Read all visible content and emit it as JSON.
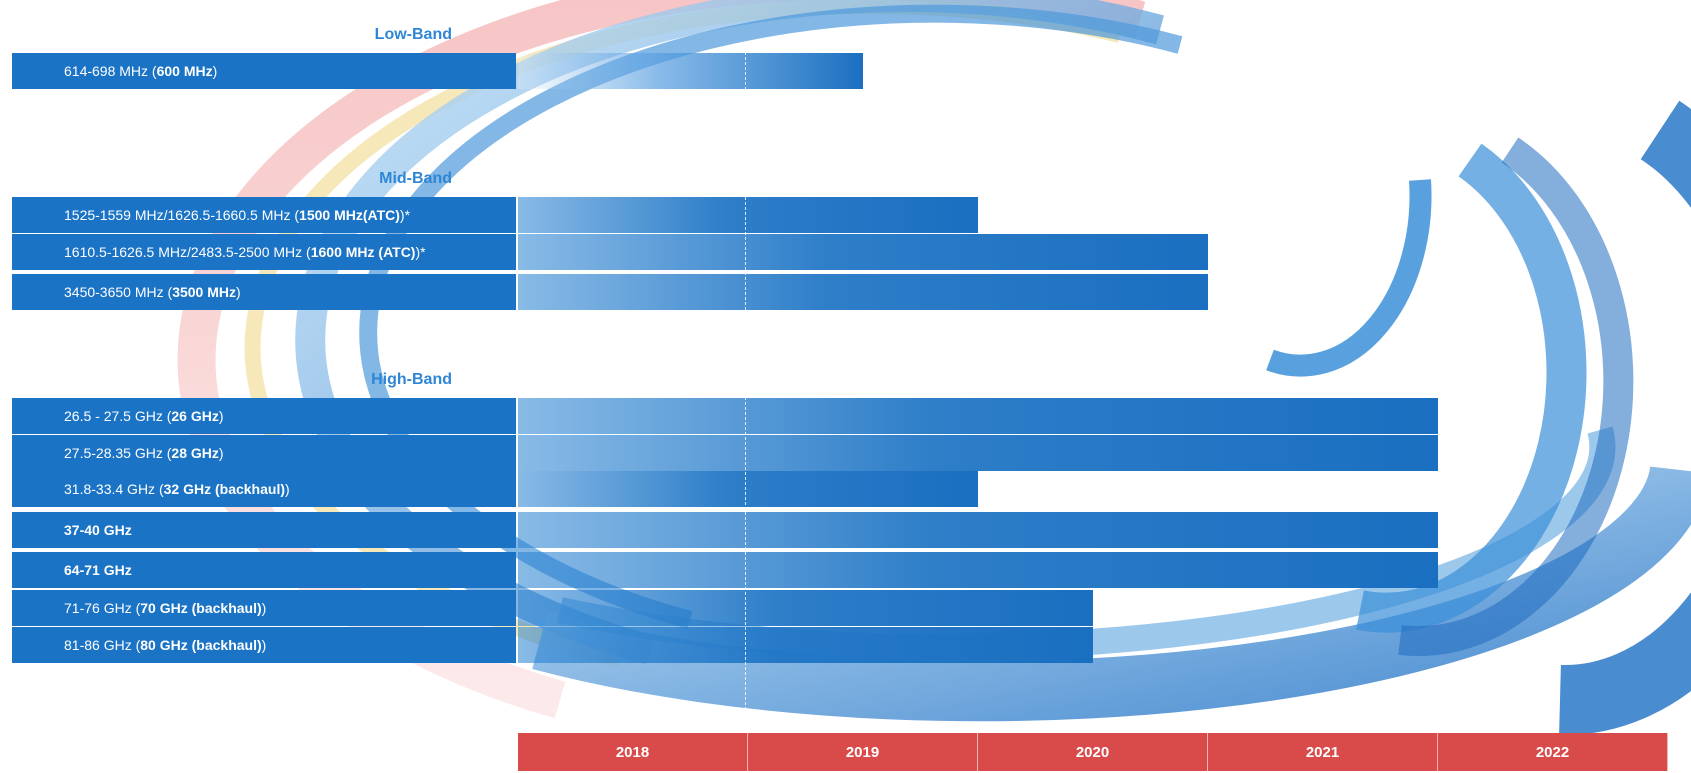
{
  "chart_data": {
    "type": "bar",
    "title": "",
    "xlabel": "",
    "ylabel": "",
    "x_axis": {
      "categories": [
        "2018",
        "2019",
        "2020",
        "2021",
        "2022"
      ],
      "range": [
        2018,
        2023
      ]
    },
    "groups": [
      {
        "name": "Low-Band",
        "bands": [
          {
            "range_text": "614-698 MHz",
            "designation": "600 MHz",
            "suffix": "",
            "label_bold": false,
            "end": 2019.5
          }
        ]
      },
      {
        "name": "Mid-Band",
        "bands": [
          {
            "range_text": "1525-1559 MHz/1626.5-1660.5 MHz",
            "designation": "1500 MHz(ATC)",
            "suffix": "*",
            "label_bold": false,
            "end": 2020.0
          },
          {
            "range_text": "1610.5-1626.5 MHz/2483.5-2500 MHz",
            "designation": "1600 MHz (ATC)",
            "suffix": "*",
            "label_bold": false,
            "end": 2021.0
          },
          {
            "range_text": "3450-3650 MHz",
            "designation": "3500 MHz",
            "suffix": "",
            "label_bold": false,
            "end": 2021.0
          }
        ]
      },
      {
        "name": "High-Band",
        "bands": [
          {
            "range_text": "26.5 - 27.5 GHz",
            "designation": "26 GHz",
            "suffix": "",
            "label_bold": false,
            "end": 2022.0
          },
          {
            "range_text": "27.5-28.35 GHz",
            "designation": "28 GHz",
            "suffix": "",
            "label_bold": false,
            "end": 2022.0
          },
          {
            "range_text": "31.8-33.4 GHz",
            "designation": "32 GHz (backhaul)",
            "suffix": "",
            "label_bold": false,
            "end": 2020.0
          },
          {
            "range_text": "37-40 GHz",
            "designation": "",
            "suffix": "",
            "label_bold": true,
            "end": 2022.0
          },
          {
            "range_text": "64-71 GHz",
            "designation": "",
            "suffix": "",
            "label_bold": true,
            "end": 2022.0
          },
          {
            "range_text": "71-76 GHz",
            "designation": "70 GHz (backhaul)",
            "suffix": "",
            "label_bold": false,
            "end": 2020.5
          },
          {
            "range_text": "81-86 GHz",
            "designation": "80 GHz (backhaul)",
            "suffix": "",
            "label_bold": false,
            "end": 2020.5
          }
        ]
      }
    ]
  },
  "colors": {
    "label_box": "#1a73c4",
    "bar": "#1a6fc0",
    "group_header": "#2f86d4",
    "year_axis": "#d94a4a",
    "decor_blue": "#3b8fd8",
    "decor_red": "#e8868a",
    "decor_yellow": "#f2d98a"
  }
}
